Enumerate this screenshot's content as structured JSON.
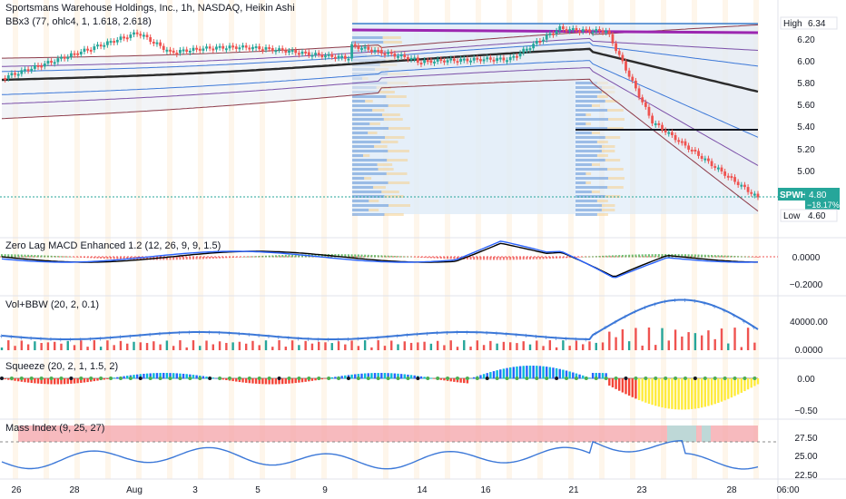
{
  "header": {
    "title": "Sportsmans Warehouse Holdings, Inc., 1h, NASDAQ, Heikin Ashi",
    "indicator": "BBx3 (77, ohlc4, 1, 1.618, 2.618)"
  },
  "price_axis": {
    "ticks": [
      "6.20",
      "6.00",
      "5.80",
      "5.60",
      "5.40",
      "5.20",
      "5.00"
    ],
    "high_label": "High",
    "high_value": "6.34",
    "low_label": "Low",
    "low_value": "4.60",
    "symbol": "SPWH",
    "last_price": "4.80",
    "change": "−18.17%"
  },
  "panes": {
    "macd": {
      "label": "Zero Lag MACD Enhanced 1.2 (12, 26, 9, 9, 1.5)",
      "ticks": [
        "0.0000",
        "−0.2000"
      ]
    },
    "volume": {
      "label": "Vol+BBW (20, 2, 0.1)",
      "ticks": [
        "40000.00",
        "0.0000"
      ]
    },
    "squeeze": {
      "label": "Squeeze (20, 2, 1, 1.5, 2)",
      "ticks": [
        "0.00",
        "−0.50"
      ]
    },
    "mass": {
      "label": "Mass Index (9, 25, 27)",
      "ticks": [
        "27.50",
        "25.00",
        "22.50"
      ]
    }
  },
  "time_axis": {
    "labels": [
      "26",
      "28",
      "Aug",
      "3",
      "5",
      "7",
      "9",
      "14",
      "16",
      "21",
      "23",
      "28"
    ],
    "extra": "06:00"
  },
  "colors": {
    "up": "#26a69a",
    "down": "#ef5350",
    "bb_outer": "#8d3b4a",
    "bb_mid": "#7b4fa8",
    "bb_inner": "#3c78d8",
    "basis": "#2b2b2b",
    "macd_line": "#000000",
    "signal_line": "#2962ff",
    "accent": "#2962ff"
  }
}
